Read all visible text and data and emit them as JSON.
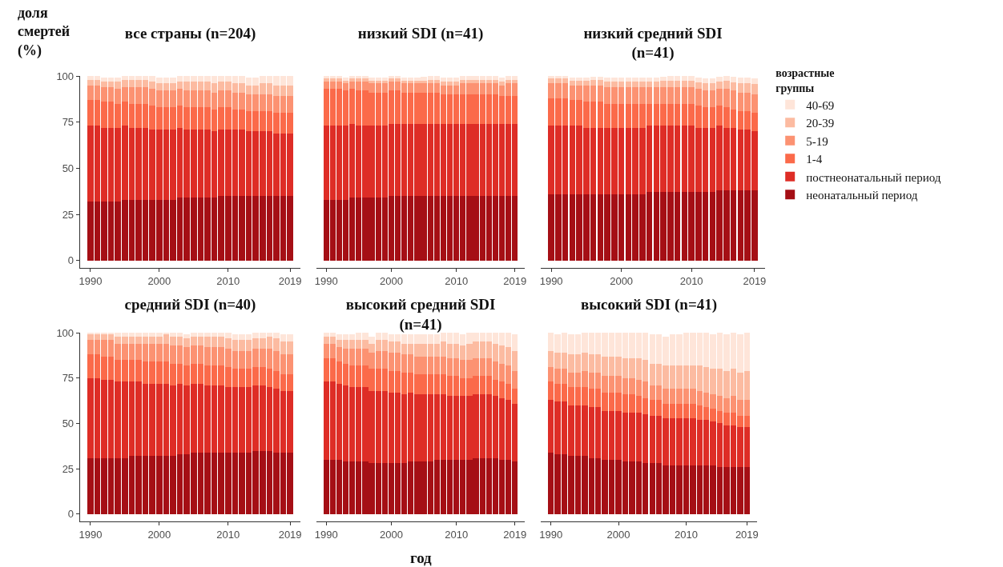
{
  "chart_data": [
    {
      "type": "bar",
      "stacked": true,
      "title": "все страны (n=204)",
      "ylabel": "доля смертей (%)",
      "x": [
        1990,
        1991,
        1992,
        1993,
        1994,
        1995,
        1996,
        1997,
        1998,
        1999,
        2000,
        2001,
        2002,
        2003,
        2004,
        2005,
        2006,
        2007,
        2008,
        2009,
        2010,
        2011,
        2012,
        2013,
        2014,
        2015,
        2016,
        2017,
        2018,
        2019
      ],
      "xlim": [
        1988.5,
        2020.5
      ],
      "xticks": [
        1990,
        2000,
        2010,
        2019
      ],
      "ylim": [
        -4,
        100
      ],
      "yticks": [
        0,
        25,
        50,
        75,
        100
      ],
      "series": [
        {
          "color": "#a50f15",
          "values": [
            32,
            32,
            32,
            32,
            32,
            33,
            33,
            33,
            33,
            33,
            33,
            33,
            33,
            34,
            34,
            34,
            34,
            34,
            34,
            35,
            35,
            35,
            35,
            35,
            35,
            35,
            35,
            35,
            35,
            35
          ]
        },
        {
          "color": "#de2d26",
          "values": [
            41,
            41,
            40,
            40,
            40,
            40,
            39,
            39,
            39,
            38,
            38,
            38,
            38,
            38,
            37,
            37,
            37,
            37,
            36,
            36,
            36,
            36,
            36,
            35,
            35,
            35,
            35,
            34,
            34,
            34
          ]
        },
        {
          "color": "#fb6a4a",
          "values": [
            14,
            14,
            14,
            14,
            13,
            13,
            13,
            13,
            13,
            13,
            12,
            12,
            12,
            12,
            12,
            12,
            12,
            12,
            12,
            12,
            12,
            11,
            11,
            11,
            11,
            11,
            11,
            11,
            11,
            11
          ]
        },
        {
          "color": "#fc9272",
          "values": [
            8,
            8,
            8,
            8,
            8,
            8,
            9,
            9,
            9,
            9,
            9,
            9,
            9,
            9,
            9,
            9,
            9,
            9,
            9,
            9,
            9,
            9,
            9,
            9,
            9,
            9,
            9,
            9,
            9,
            9
          ]
        },
        {
          "color": "#fcbba1",
          "values": [
            3,
            3,
            3,
            3,
            4,
            4,
            4,
            4,
            4,
            4,
            4,
            4,
            4,
            4,
            5,
            5,
            5,
            5,
            5,
            5,
            5,
            5,
            5,
            5,
            5,
            6,
            6,
            6,
            6,
            6
          ]
        },
        {
          "color": "#fee5d9",
          "values": [
            2,
            2,
            2,
            2,
            2,
            2,
            2,
            2,
            2,
            3,
            3,
            3,
            3,
            3,
            3,
            3,
            3,
            3,
            4,
            3,
            3,
            4,
            4,
            4,
            4,
            4,
            4,
            5,
            5,
            5
          ]
        }
      ]
    },
    {
      "type": "bar",
      "stacked": true,
      "title": "низкий SDI (n=41)",
      "tick_labels": "x",
      "x": [
        1990,
        1991,
        1992,
        1993,
        1994,
        1995,
        1996,
        1997,
        1998,
        1999,
        2000,
        2001,
        2002,
        2003,
        2004,
        2005,
        2006,
        2007,
        2008,
        2009,
        2010,
        2011,
        2012,
        2013,
        2014,
        2015,
        2016,
        2017,
        2018,
        2019
      ],
      "xlim": [
        1988.5,
        2020.5
      ],
      "xticks": [
        1990,
        2000,
        2010,
        2019
      ],
      "ylim": [
        -4,
        100
      ],
      "yticks": [
        0,
        25,
        50,
        75,
        100
      ],
      "series": [
        {
          "color": "#a50f15",
          "values": [
            33,
            33,
            33,
            33,
            34,
            34,
            34,
            34,
            34,
            34,
            35,
            35,
            35,
            35,
            35,
            35,
            35,
            35,
            35,
            35,
            35,
            35,
            35,
            35,
            35,
            35,
            35,
            35,
            35,
            35
          ]
        },
        {
          "color": "#de2d26",
          "values": [
            40,
            40,
            40,
            40,
            40,
            39,
            39,
            39,
            39,
            39,
            39,
            39,
            39,
            39,
            39,
            39,
            39,
            39,
            39,
            39,
            39,
            39,
            39,
            39,
            39,
            39,
            39,
            39,
            39,
            39
          ]
        },
        {
          "color": "#fb6a4a",
          "values": [
            20,
            20,
            20,
            19,
            19,
            19,
            19,
            18,
            18,
            18,
            18,
            18,
            17,
            17,
            17,
            17,
            17,
            17,
            16,
            16,
            16,
            16,
            16,
            16,
            16,
            16,
            16,
            15,
            15,
            15
          ]
        },
        {
          "color": "#fc9272",
          "values": [
            4,
            4,
            4,
            4,
            4,
            5,
            5,
            5,
            5,
            5,
            5,
            5,
            5,
            5,
            5,
            5,
            5,
            5,
            5,
            5,
            5,
            6,
            6,
            6,
            6,
            6,
            6,
            6,
            7,
            7
          ]
        },
        {
          "color": "#fcbba1",
          "values": [
            1.5,
            1.5,
            1.5,
            1.5,
            1.5,
            1.5,
            1.5,
            1.5,
            1.5,
            1.5,
            1.5,
            1.5,
            1.5,
            1.5,
            1.5,
            1.5,
            2,
            2,
            2,
            2,
            2,
            2,
            2,
            2,
            2,
            2,
            2,
            2,
            2,
            2
          ]
        },
        {
          "color": "#fee5d9",
          "values": [
            1.5,
            1.5,
            1.5,
            1.5,
            1.5,
            1.5,
            1.5,
            1.5,
            1.5,
            1.5,
            1.5,
            1.5,
            1.5,
            1.5,
            1.5,
            2,
            2,
            2,
            2,
            2,
            2,
            2,
            2,
            2,
            2,
            2,
            2,
            2,
            2,
            2
          ]
        }
      ]
    },
    {
      "type": "bar",
      "stacked": true,
      "title": "низкий средний SDI (n=41)",
      "tick_labels": "x",
      "legend": "right",
      "legend_title": "возрастные группы",
      "x": [
        1990,
        1991,
        1992,
        1993,
        1994,
        1995,
        1996,
        1997,
        1998,
        1999,
        2000,
        2001,
        2002,
        2003,
        2004,
        2005,
        2006,
        2007,
        2008,
        2009,
        2010,
        2011,
        2012,
        2013,
        2014,
        2015,
        2016,
        2017,
        2018,
        2019
      ],
      "xlim": [
        1988.5,
        2020.5
      ],
      "xticks": [
        1990,
        2000,
        2010,
        2019
      ],
      "ylim": [
        -4,
        100
      ],
      "yticks": [
        0,
        25,
        50,
        75,
        100
      ],
      "series": [
        {
          "name": "неонатальный период",
          "color": "#a50f15",
          "values": [
            36,
            36,
            36,
            36,
            36,
            36,
            36,
            36,
            36,
            36,
            36,
            36,
            36,
            36,
            37,
            37,
            37,
            37,
            37,
            37,
            37,
            37,
            37,
            37,
            38,
            38,
            38,
            38,
            38,
            38
          ]
        },
        {
          "name": "постнеонатальный период",
          "color": "#de2d26",
          "values": [
            37,
            37,
            37,
            37,
            37,
            36,
            36,
            36,
            36,
            36,
            36,
            36,
            36,
            36,
            36,
            36,
            36,
            36,
            36,
            36,
            36,
            35,
            35,
            35,
            35,
            34,
            34,
            33,
            33,
            32
          ]
        },
        {
          "name": "1-4",
          "color": "#fb6a4a",
          "values": [
            15,
            15,
            15,
            14,
            14,
            14,
            14,
            14,
            13,
            13,
            13,
            13,
            13,
            13,
            12,
            12,
            12,
            12,
            12,
            12,
            12,
            12,
            11,
            11,
            11,
            11,
            10,
            10,
            10,
            10
          ]
        },
        {
          "name": "5-19",
          "color": "#fc9272",
          "values": [
            8,
            8,
            8,
            8,
            8,
            9,
            9,
            9,
            9,
            9,
            9,
            9,
            9,
            9,
            9,
            9,
            9,
            9,
            9,
            9,
            9,
            9,
            9,
            9,
            9,
            10,
            10,
            10,
            10,
            10
          ]
        },
        {
          "name": "20-39",
          "color": "#fcbba1",
          "values": [
            2.5,
            2.5,
            2.5,
            2.5,
            2.5,
            2.5,
            3,
            3,
            3,
            3,
            3,
            3,
            3,
            3,
            3,
            3,
            3.5,
            3.5,
            3.5,
            3.5,
            3.5,
            3.5,
            4,
            4,
            4,
            4.5,
            4.5,
            5,
            5,
            5.5
          ]
        },
        {
          "name": "40-69",
          "color": "#fee5d9",
          "values": [
            1.5,
            1.5,
            1.5,
            1.5,
            1.5,
            1.5,
            1.5,
            1.5,
            2,
            2,
            2,
            2,
            2,
            2,
            2,
            2,
            2,
            2.5,
            2.5,
            2.5,
            2.5,
            2.5,
            2.5,
            2.5,
            2.5,
            2.5,
            3,
            3,
            3,
            3
          ]
        }
      ]
    },
    {
      "type": "bar",
      "stacked": true,
      "title": "средний SDI (n=40)",
      "x": [
        1990,
        1991,
        1992,
        1993,
        1994,
        1995,
        1996,
        1997,
        1998,
        1999,
        2000,
        2001,
        2002,
        2003,
        2004,
        2005,
        2006,
        2007,
        2008,
        2009,
        2010,
        2011,
        2012,
        2013,
        2014,
        2015,
        2016,
        2017,
        2018,
        2019
      ],
      "xlim": [
        1988.5,
        2020.5
      ],
      "xticks": [
        1990,
        2000,
        2010,
        2019
      ],
      "ylim": [
        -4,
        100
      ],
      "yticks": [
        0,
        25,
        50,
        75,
        100
      ],
      "series": [
        {
          "color": "#a50f15",
          "values": [
            31,
            31,
            31,
            31,
            31,
            31,
            32,
            32,
            32,
            32,
            32,
            32,
            32,
            33,
            33,
            34,
            34,
            34,
            34,
            34,
            34,
            34,
            34,
            34,
            35,
            35,
            35,
            34,
            34,
            34
          ]
        },
        {
          "color": "#de2d26",
          "values": [
            44,
            44,
            43,
            43,
            42,
            42,
            41,
            41,
            40,
            40,
            40,
            40,
            39,
            39,
            38,
            38,
            38,
            37,
            37,
            37,
            36,
            36,
            36,
            36,
            36,
            36,
            35,
            35,
            34,
            34
          ]
        },
        {
          "color": "#fb6a4a",
          "values": [
            13,
            13,
            13,
            13,
            12,
            12,
            12,
            12,
            12,
            12,
            12,
            12,
            12,
            11,
            11,
            11,
            11,
            11,
            11,
            11,
            11,
            10,
            10,
            10,
            10,
            10,
            10,
            10,
            9,
            9
          ]
        },
        {
          "color": "#fc9272",
          "values": [
            8,
            8,
            9,
            9,
            9,
            9,
            9,
            9,
            10,
            10,
            10,
            10,
            10,
            10,
            10,
            10,
            10,
            10,
            10,
            10,
            10,
            10,
            10,
            10,
            10,
            10,
            11,
            11,
            11,
            11
          ]
        },
        {
          "color": "#fcbba1",
          "values": [
            3,
            3,
            3,
            3,
            4,
            4,
            4,
            4,
            4,
            4,
            4,
            5,
            5,
            5,
            5,
            5,
            5,
            6,
            6,
            6,
            6,
            6,
            6,
            6,
            6,
            6,
            7,
            7,
            7,
            7
          ]
        },
        {
          "color": "#fee5d9",
          "values": [
            1,
            1,
            1,
            1,
            2,
            2,
            2,
            2,
            2,
            2,
            2,
            1,
            2,
            2,
            2,
            2,
            2,
            2,
            2,
            2,
            3,
            3,
            3,
            3,
            3,
            3,
            2,
            3,
            4,
            4
          ]
        }
      ]
    },
    {
      "type": "bar",
      "stacked": true,
      "title": "высокий средний SDI (n=41)",
      "xlabel": "год",
      "tick_labels": "x",
      "x": [
        1990,
        1991,
        1992,
        1993,
        1994,
        1995,
        1996,
        1997,
        1998,
        1999,
        2000,
        2001,
        2002,
        2003,
        2004,
        2005,
        2006,
        2007,
        2008,
        2009,
        2010,
        2011,
        2012,
        2013,
        2014,
        2015,
        2016,
        2017,
        2018,
        2019
      ],
      "xlim": [
        1988.5,
        2020.5
      ],
      "xticks": [
        1990,
        2000,
        2010,
        2019
      ],
      "ylim": [
        -4,
        100
      ],
      "yticks": [
        0,
        25,
        50,
        75,
        100
      ],
      "series": [
        {
          "color": "#a50f15",
          "values": [
            30,
            30,
            30,
            29,
            29,
            29,
            29,
            28,
            28,
            28,
            28,
            28,
            28,
            29,
            29,
            29,
            29,
            30,
            30,
            30,
            30,
            30,
            30,
            31,
            31,
            31,
            31,
            30,
            30,
            29
          ]
        },
        {
          "color": "#de2d26",
          "values": [
            43,
            43,
            42,
            42,
            41,
            41,
            41,
            40,
            40,
            40,
            39,
            39,
            38,
            38,
            37,
            37,
            37,
            36,
            36,
            35,
            35,
            35,
            35,
            35,
            35,
            35,
            34,
            34,
            33,
            32
          ]
        },
        {
          "color": "#fb6a4a",
          "values": [
            13,
            13,
            12,
            12,
            12,
            12,
            12,
            12,
            12,
            12,
            12,
            12,
            12,
            11,
            11,
            11,
            11,
            11,
            11,
            11,
            11,
            10,
            10,
            10,
            10,
            10,
            9,
            9,
            9,
            8
          ]
        },
        {
          "color": "#fc9272",
          "values": [
            8,
            8,
            8,
            8,
            9,
            9,
            9,
            9,
            10,
            10,
            10,
            10,
            10,
            10,
            10,
            10,
            10,
            10,
            10,
            10,
            10,
            10,
            10,
            10,
            10,
            10,
            10,
            10,
            10,
            10
          ]
        },
        {
          "color": "#fcbba1",
          "values": [
            4,
            4,
            4,
            5,
            5,
            5,
            5,
            5,
            6,
            6,
            6,
            6,
            6,
            6,
            7,
            7,
            7,
            7,
            8,
            8,
            8,
            8,
            9,
            9,
            9,
            9,
            10,
            10,
            10,
            11
          ]
        },
        {
          "color": "#fee5d9",
          "values": [
            2,
            2,
            3,
            3,
            3,
            4,
            4,
            4,
            4,
            4,
            4,
            4,
            5,
            5,
            5,
            5,
            5,
            5,
            5,
            6,
            6,
            6,
            6,
            5,
            5,
            5,
            6,
            7,
            8,
            9
          ]
        }
      ]
    },
    {
      "type": "bar",
      "stacked": true,
      "title": "высокий SDI (n=41)",
      "tick_labels": "x",
      "x": [
        1990,
        1991,
        1992,
        1993,
        1994,
        1995,
        1996,
        1997,
        1998,
        1999,
        2000,
        2001,
        2002,
        2003,
        2004,
        2005,
        2006,
        2007,
        2008,
        2009,
        2010,
        2011,
        2012,
        2013,
        2014,
        2015,
        2016,
        2017,
        2018,
        2019
      ],
      "xlim": [
        1988.5,
        2020.5
      ],
      "xticks": [
        1990,
        2000,
        2010,
        2019
      ],
      "ylim": [
        -4,
        100
      ],
      "yticks": [
        0,
        25,
        50,
        75,
        100
      ],
      "series": [
        {
          "color": "#a50f15",
          "values": [
            34,
            33,
            33,
            32,
            32,
            32,
            31,
            31,
            30,
            30,
            30,
            29,
            29,
            29,
            28,
            28,
            28,
            27,
            27,
            27,
            27,
            27,
            27,
            27,
            27,
            26,
            26,
            26,
            26,
            26
          ]
        },
        {
          "color": "#de2d26",
          "values": [
            29,
            29,
            29,
            28,
            28,
            28,
            28,
            28,
            27,
            27,
            27,
            27,
            27,
            27,
            27,
            26,
            26,
            26,
            26,
            26,
            26,
            26,
            25,
            25,
            24,
            24,
            23,
            23,
            22,
            22
          ]
        },
        {
          "color": "#fb6a4a",
          "values": [
            10,
            10,
            10,
            10,
            10,
            10,
            10,
            10,
            10,
            10,
            10,
            10,
            10,
            9,
            9,
            9,
            9,
            8,
            8,
            8,
            8,
            8,
            8,
            7,
            7,
            7,
            7,
            7,
            6,
            6
          ]
        },
        {
          "color": "#fc9272",
          "values": [
            8,
            8,
            8,
            8,
            8,
            9,
            9,
            9,
            9,
            9,
            9,
            9,
            9,
            9,
            9,
            8,
            8,
            8,
            8,
            8,
            8,
            8,
            8,
            8,
            8,
            8,
            8,
            9,
            9,
            9
          ]
        },
        {
          "color": "#fcbba1",
          "values": [
            9,
            9,
            9,
            10,
            10,
            10,
            10,
            10,
            11,
            11,
            11,
            11,
            11,
            12,
            12,
            12,
            12,
            13,
            13,
            13,
            13,
            13,
            14,
            14,
            14,
            15,
            15,
            15,
            15,
            16
          ]
        },
        {
          "color": "#fee5d9",
          "values": [
            10,
            10,
            11,
            11,
            11,
            11,
            12,
            12,
            13,
            13,
            13,
            14,
            14,
            14,
            15,
            16,
            16,
            16,
            17,
            17,
            18,
            18,
            18,
            19,
            19,
            20,
            20,
            20,
            21,
            21
          ]
        }
      ]
    }
  ]
}
